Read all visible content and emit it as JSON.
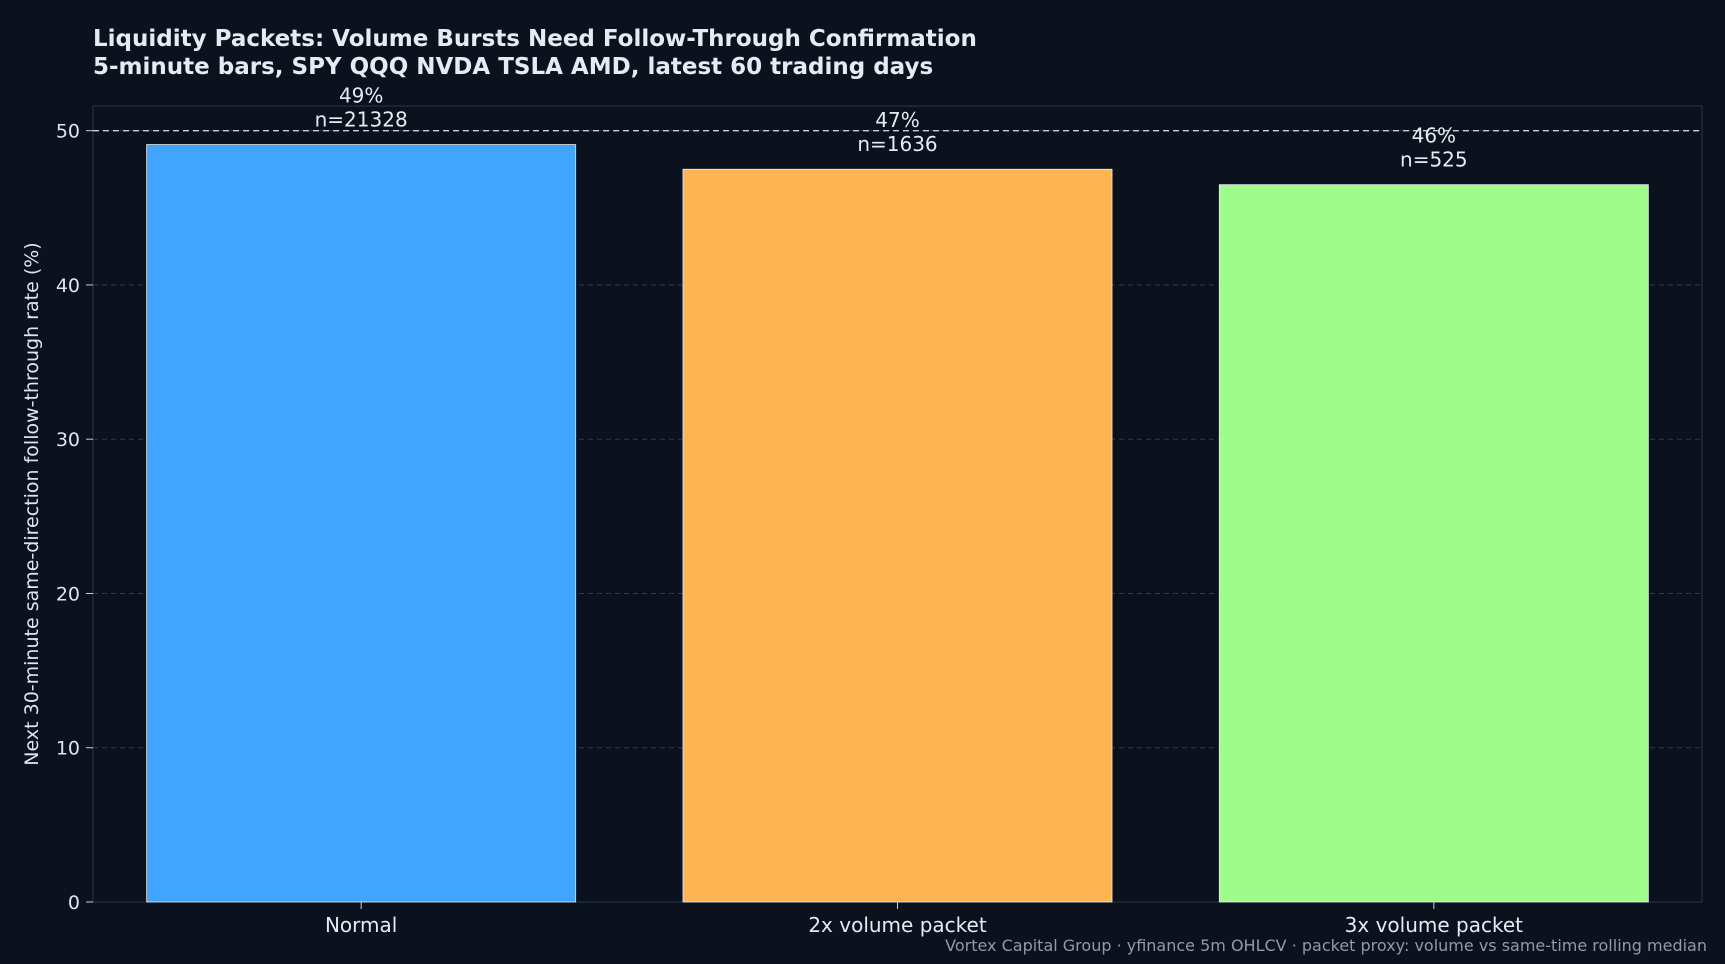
{
  "chart_data": {
    "type": "bar",
    "title": "Liquidity Packets: Volume Bursts Need Follow-Through Confirmation",
    "subtitle": "5-minute bars, SPY QQQ NVDA TSLA AMD, latest 60 trading days",
    "xlabel": "",
    "ylabel": "Next 30-minute same-direction follow-through rate (%)",
    "categories": [
      "Normal",
      "2x volume packet",
      "3x volume packet"
    ],
    "values": [
      49.1,
      47.5,
      46.5
    ],
    "value_labels": [
      "49%",
      "47%",
      "46%"
    ],
    "sample_labels": [
      "n=21328",
      "n=1636",
      "n=525"
    ],
    "bar_colors": [
      "#3fa5ff",
      "#ffb454",
      "#a0fc8a"
    ],
    "ylim": [
      0,
      51.6
    ],
    "yticks": [
      0,
      10,
      20,
      30,
      40,
      50
    ],
    "reference_line": 50,
    "grid": true,
    "footnote": "Vortex Capital Group · yfinance 5m OHLCV · packet proxy: volume vs same-time rolling median"
  }
}
